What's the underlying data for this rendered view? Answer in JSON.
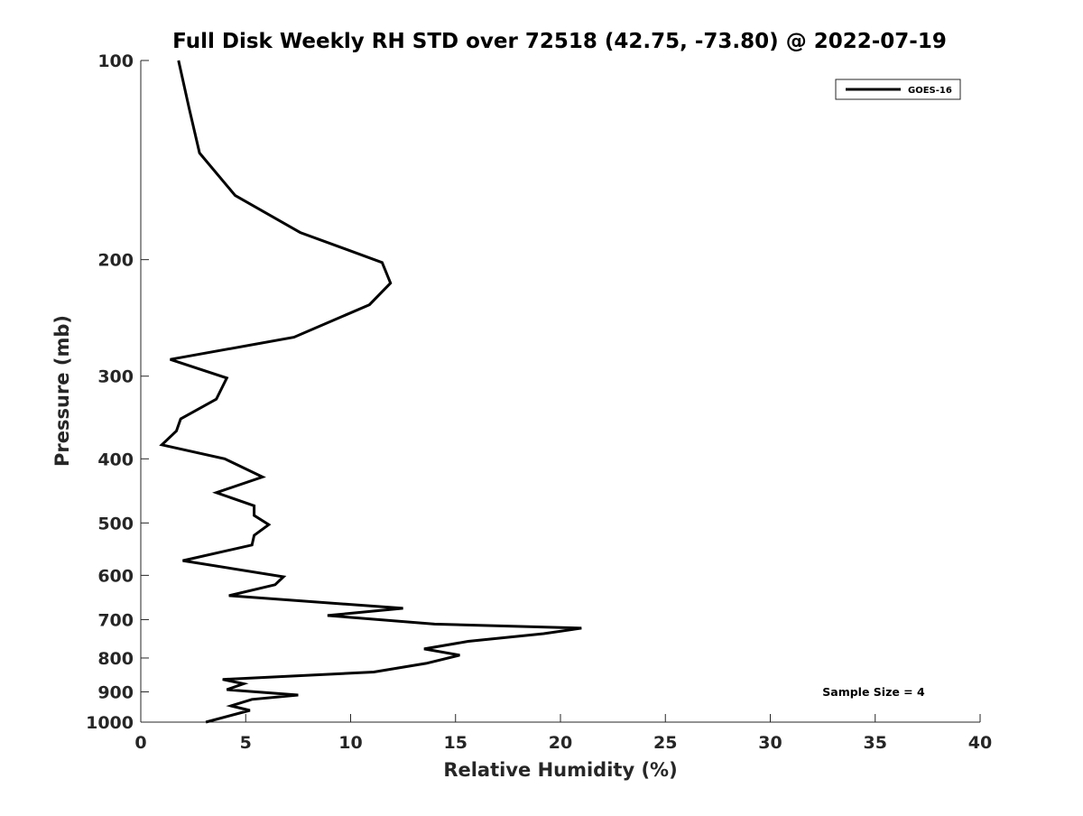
{
  "chart_data": {
    "type": "line",
    "title": "Full Disk Weekly RH STD over 72518 (42.75, -73.80) @ 2022-07-19",
    "xlabel": "Relative Humidity (%)",
    "ylabel": "Pressure (mb)",
    "xlim": [
      0,
      40
    ],
    "ylim": [
      100,
      1000
    ],
    "yscale": "log",
    "y_reversed": true,
    "grid": false,
    "xticks": [
      0,
      5,
      10,
      15,
      20,
      25,
      30,
      35,
      40
    ],
    "xtick_labels": [
      "0",
      "5",
      "10",
      "15",
      "20",
      "25",
      "30",
      "35",
      "40"
    ],
    "yticks": [
      100,
      200,
      300,
      400,
      500,
      600,
      700,
      800,
      900,
      1000
    ],
    "ytick_labels": [
      "100",
      "200",
      "300",
      "400",
      "500",
      "600",
      "700",
      "800",
      "900",
      "1000"
    ],
    "legend_position": "top-right",
    "series": [
      {
        "name": "GOES-16",
        "color": "#000000",
        "x": [
          1.8,
          2.3,
          2.8,
          4.5,
          7.6,
          11.5,
          11.9,
          10.9,
          7.3,
          1.4,
          4.1,
          3.6,
          1.9,
          1.7,
          1.0,
          4.0,
          5.8,
          3.6,
          5.4,
          5.4,
          6.1,
          5.4,
          5.3,
          2.0,
          6.8,
          6.4,
          4.2,
          12.5,
          8.9,
          14.0,
          21.0,
          19.2,
          15.6,
          13.5,
          15.2,
          13.6,
          11.1,
          3.9,
          4.9,
          4.1,
          7.5,
          5.3,
          4.3,
          5.2,
          3.1
        ],
        "y": [
          100,
          118,
          138,
          160,
          182,
          202,
          217,
          234,
          262,
          283,
          302,
          325,
          348,
          363,
          381,
          400,
          426,
          450,
          471,
          487,
          503,
          522,
          540,
          570,
          603,
          620,
          644,
          673,
          690,
          711,
          721,
          735,
          755,
          775,
          792,
          815,
          840,
          862,
          875,
          893,
          910,
          924,
          945,
          960,
          1000
        ]
      }
    ],
    "annotations": [
      "Sample Size = 4"
    ]
  },
  "legend": {
    "entries": [
      "GOES-16"
    ]
  },
  "annotation_text": "Sample Size = 4"
}
